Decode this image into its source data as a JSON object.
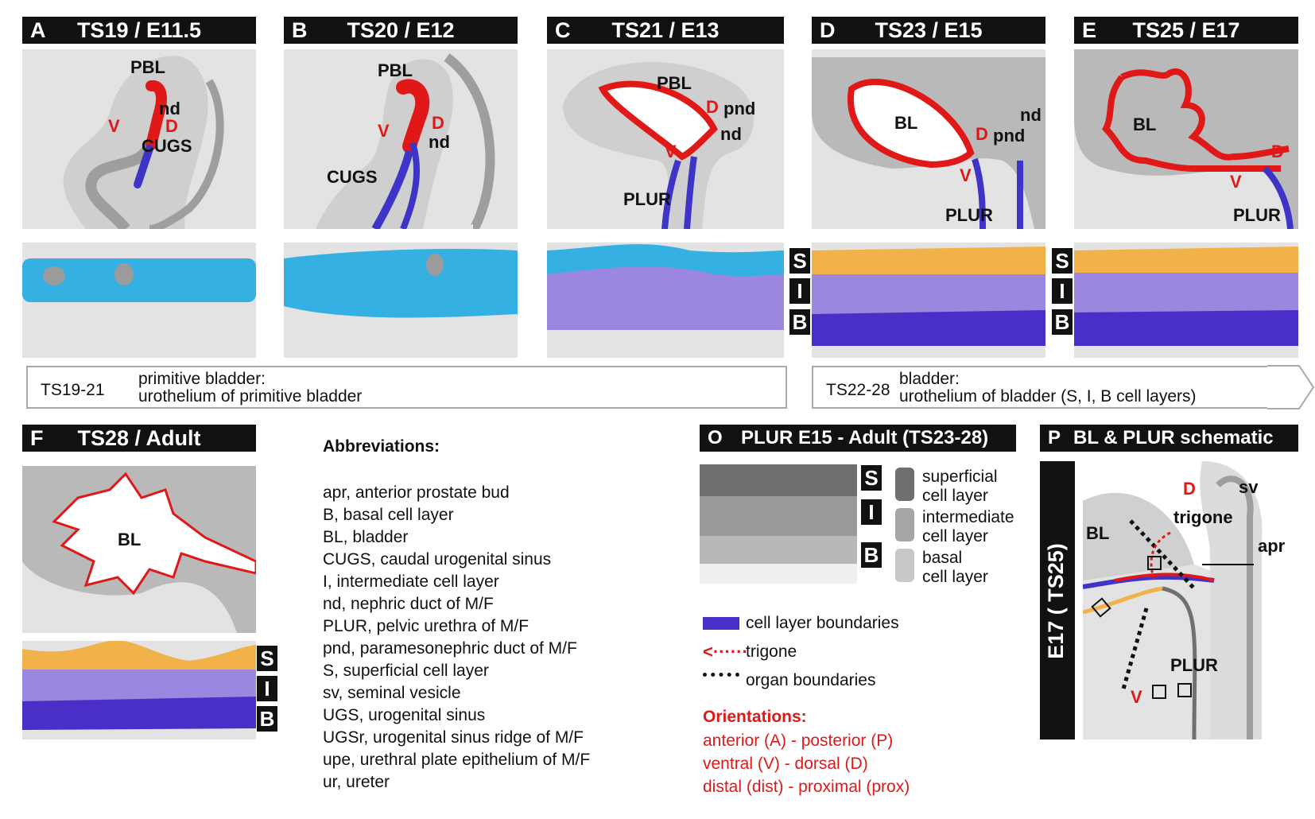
{
  "panels": {
    "A": {
      "letter": "A",
      "title": "TS19 / E11.5"
    },
    "B": {
      "letter": "B",
      "title": "TS20 / E12"
    },
    "C": {
      "letter": "C",
      "title": "TS21 / E13"
    },
    "D": {
      "letter": "D",
      "title": "TS23 / E15"
    },
    "E": {
      "letter": "E",
      "title": "TS25 / E17"
    },
    "F": {
      "letter": "F",
      "title": "TS28 / Adult"
    },
    "O": {
      "letter": "O",
      "title": "PLUR E15 - Adult (TS23-28)"
    },
    "P": {
      "letter": "P",
      "title": "BL & PLUR schematic"
    }
  },
  "labels": {
    "pbl": "PBL",
    "nd": "nd",
    "pnd": "pnd",
    "cugs": "CUGS",
    "plur": "PLUR",
    "bl": "BL",
    "v": "V",
    "d": "D",
    "sv": "sv",
    "apr": "apr",
    "trigone": "trigone"
  },
  "layers": {
    "s": "S",
    "i": "I",
    "b": "B"
  },
  "stages": {
    "primitive": {
      "code": "TS19-21",
      "line1": "primitive bladder:",
      "line2": "urothelium of primitive bladder"
    },
    "bladder": {
      "code": "TS22-28",
      "line1": "bladder:",
      "line2": "urothelium of bladder (S, I, B cell layers)"
    }
  },
  "abbreviations": {
    "title": "Abbreviations:",
    "items": [
      "apr, anterior prostate bud",
      "B, basal cell layer",
      "BL, bladder",
      "CUGS, caudal urogenital sinus",
      "I, intermediate cell layer",
      "nd, nephric duct of M/F",
      "PLUR, pelvic urethra of M/F",
      "pnd, paramesonephric duct of M/F",
      "S, superficial cell layer",
      "sv, seminal vesicle",
      "UGS, urogenital sinus",
      "UGSr, urogenital sinus ridge of M/F",
      "upe, urethral plate epithelium of M/F",
      "ur, ureter"
    ]
  },
  "o_legend": {
    "superficial_1": "superficial",
    "superficial_2": "cell layer",
    "intermediate_1": "intermediate",
    "intermediate_2": "cell layer",
    "basal_1": "basal",
    "basal_2": "cell layer"
  },
  "legend": {
    "cell_layer_boundaries": "cell layer boundaries",
    "trigone": "trigone",
    "organ_boundaries": "organ boundaries"
  },
  "orientations": {
    "title": "Orientations:",
    "items": [
      "anterior (A) - posterior (P)",
      "ventral (V) - dorsal (D)",
      "distal (dist) - proximal (prox)"
    ]
  },
  "p_side_label": "E17 ( TS25)",
  "colors": {
    "primitive_urothelium": "#e01818",
    "urethra_epithelium": "#3f34c8",
    "superficial": "#f2b24a",
    "intermediate": "#9b86e0",
    "basal": "#4a2ec8",
    "undifferentiated": "#34b0e2",
    "tissue": "#9e9e9e",
    "background": "#e3e3e3",
    "orientation_text": "#e01818"
  }
}
